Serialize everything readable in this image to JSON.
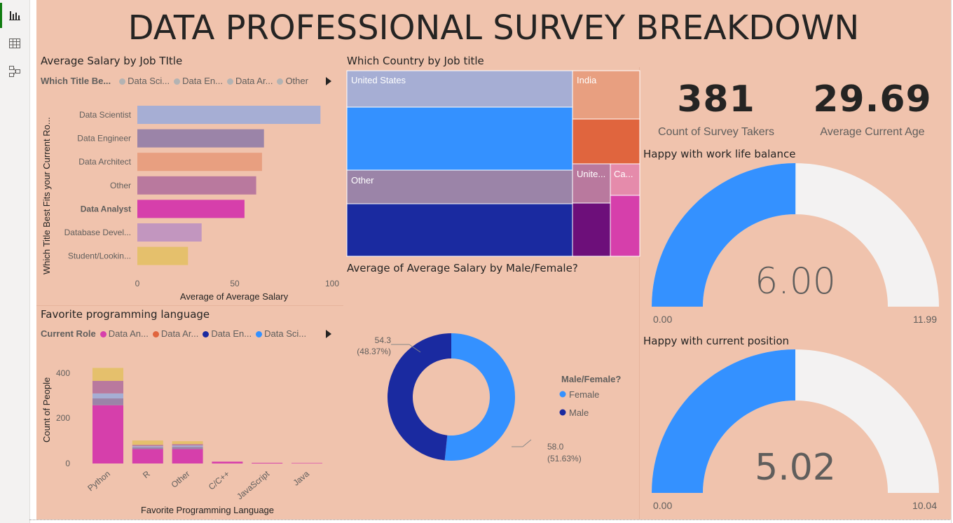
{
  "title": "DATA PROFESSIONAL SURVEY BREAKDOWN",
  "salary_by_title": {
    "title": "Average Salary by Job TItle",
    "legend_title": "Which Title Be...",
    "legend_items": [
      "Data Sci...",
      "Data En...",
      "Data Ar...",
      "Other"
    ],
    "y_axis_title": "Which Title Best Fits your Current Ro...",
    "x_axis_title": "Average of Average Salary",
    "x_ticks": [
      "0",
      "50",
      "100"
    ]
  },
  "country_treemap": {
    "title": "Which Country by Job title",
    "labels": [
      "United States",
      "India",
      "Other",
      "Unite...",
      "Ca..."
    ]
  },
  "kpis": [
    {
      "value": "381",
      "label": "Count of Survey Takers"
    },
    {
      "value": "29.69",
      "label": "Average Current Age"
    }
  ],
  "gauge_worklife": {
    "title": "Happy with work life balance",
    "value": 6.0,
    "value_text": "6.00",
    "min_text": "0.00",
    "max_text": "11.99",
    "max": 11.99
  },
  "gauge_position": {
    "title": "Happy with current position",
    "value": 5.02,
    "value_text": "5.02",
    "min_text": "0.00",
    "max_text": "10.04",
    "max": 10.04
  },
  "language_chart": {
    "title": "Favorite programming language",
    "legend_title": "Current Role",
    "legend_items": [
      "Data An...",
      "Data Ar...",
      "Data En...",
      "Data Sci..."
    ],
    "y_axis_title": "Count of People",
    "x_axis_title": "Favorite Programming Language",
    "y_ticks": [
      "0",
      "200",
      "400"
    ]
  },
  "donut": {
    "title": "Average of Average Salary by Male/Female?",
    "legend_title": "Male/Female?",
    "legend_items": [
      "Female",
      "Male"
    ],
    "label_male_value": "54.3",
    "label_male_pct": "(48.37%)",
    "label_female_value": "58.0",
    "label_female_pct": "(51.63%)"
  },
  "colors": {
    "background": "#f0c3ad",
    "data_scientist": "#a6aed4",
    "data_engineer": "#9b84a8",
    "data_architect": "#e89f80",
    "other": "#b9799e",
    "data_analyst": "#d63fab",
    "database_dev": "#c296bf",
    "student": "#e5c06c",
    "blue": "#3491ff",
    "navy": "#1a2aa0",
    "gauge_track": "#f3f2f2"
  },
  "chart_data": [
    {
      "type": "bar",
      "orientation": "horizontal",
      "title": "Average Salary by Job TItle",
      "categories": [
        "Data Scientist",
        "Data Engineer",
        "Data Architect",
        "Other",
        "Data Analyst",
        "Database Devel...",
        "Student/Lookin..."
      ],
      "values": [
        94,
        65,
        64,
        61,
        55,
        33,
        26
      ],
      "xlabel": "Average of Average Salary",
      "ylabel": "Which Title Best Fits your Current Ro...",
      "xlim": [
        0,
        100
      ]
    },
    {
      "type": "bar",
      "stacked": true,
      "title": "Favorite programming language",
      "categories": [
        "Python",
        "R",
        "Other",
        "C/C++",
        "JavaScript",
        "Java"
      ],
      "series": [
        {
          "name": "Data An...",
          "values": [
            256,
            63,
            63,
            8,
            3,
            2
          ]
        },
        {
          "name": "Data Ar...",
          "values": [
            0,
            0,
            0,
            0,
            0,
            0
          ]
        },
        {
          "name": "Data En...",
          "values": [
            0,
            0,
            0,
            0,
            0,
            0
          ]
        },
        {
          "name": "Data Sci...",
          "values": [
            0,
            0,
            0,
            0,
            0,
            0
          ]
        }
      ],
      "segments_other": [
        {
          "values": [
            30,
            8,
            10,
            0,
            0,
            0
          ]
        },
        {
          "values": [
            22,
            5,
            6,
            0,
            0,
            0
          ]
        },
        {
          "values": [
            55,
            6,
            6,
            0,
            0,
            0
          ]
        },
        {
          "values": [
            57,
            19,
            13,
            0,
            0,
            0
          ]
        }
      ],
      "xlabel": "Favorite Programming Language",
      "ylabel": "Count of People",
      "ylim": [
        0,
        420
      ]
    },
    {
      "type": "pie",
      "donut": true,
      "title": "Average of Average Salary by Male/Female?",
      "categories": [
        "Female",
        "Male"
      ],
      "values": [
        58.0,
        54.3
      ]
    },
    {
      "type": "table",
      "chart_kind": "treemap",
      "title": "Which Country by Job title",
      "categories": [
        "United States",
        "Other",
        "India",
        "Unite...",
        "Ca..."
      ]
    }
  ]
}
